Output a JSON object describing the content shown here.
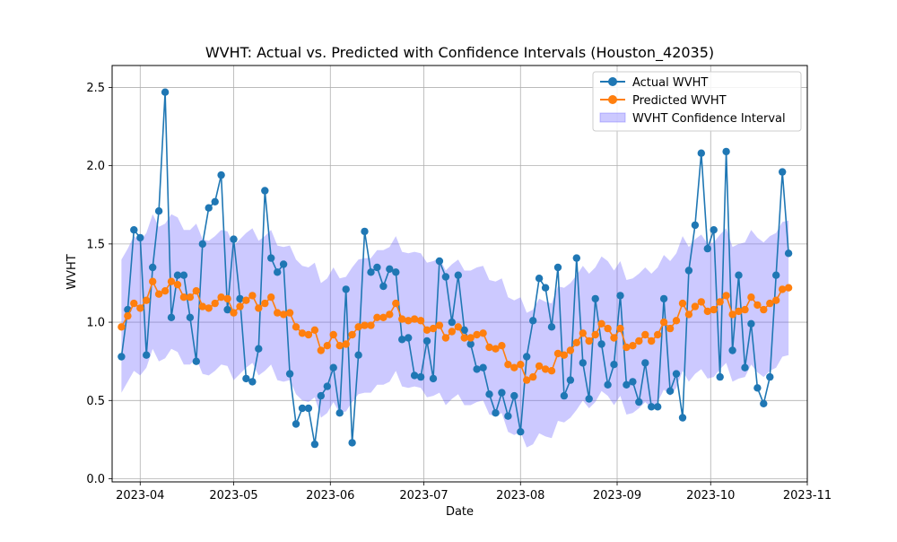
{
  "chart_data": {
    "type": "line",
    "title": "WVHT: Actual vs. Predicted with Confidence Intervals (Houston_42035)",
    "xlabel": "Date",
    "ylabel": "WVHT",
    "xlim": [
      "2023-03-23",
      "2023-11-01"
    ],
    "ylim": [
      -0.02,
      2.64
    ],
    "grid": true,
    "legend_position": "upper right",
    "x_ticks": [
      {
        "date": "2023-04-01",
        "label": "2023-04"
      },
      {
        "date": "2023-05-01",
        "label": "2023-05"
      },
      {
        "date": "2023-06-01",
        "label": "2023-06"
      },
      {
        "date": "2023-07-01",
        "label": "2023-07"
      },
      {
        "date": "2023-08-01",
        "label": "2023-08"
      },
      {
        "date": "2023-09-01",
        "label": "2023-09"
      },
      {
        "date": "2023-10-01",
        "label": "2023-10"
      },
      {
        "date": "2023-11-01",
        "label": "2023-11"
      }
    ],
    "y_ticks": [
      {
        "value": 0.0,
        "label": "0.0"
      },
      {
        "value": 0.5,
        "label": "0.5"
      },
      {
        "value": 1.0,
        "label": "1.0"
      },
      {
        "value": 1.5,
        "label": "1.5"
      },
      {
        "value": 2.0,
        "label": "2.0"
      },
      {
        "value": 2.5,
        "label": "2.5"
      }
    ],
    "colors": {
      "actual": "#1f77b4",
      "predicted": "#ff7f0e",
      "ci_fill": "#6c63ff",
      "ci_fill_opacity": 0.35
    },
    "x": [
      "2023-03-26",
      "2023-03-28",
      "2023-03-30",
      "2023-04-01",
      "2023-04-03",
      "2023-04-05",
      "2023-04-07",
      "2023-04-09",
      "2023-04-11",
      "2023-04-13",
      "2023-04-15",
      "2023-04-17",
      "2023-04-19",
      "2023-04-21",
      "2023-04-23",
      "2023-04-25",
      "2023-04-27",
      "2023-04-29",
      "2023-05-01",
      "2023-05-03",
      "2023-05-05",
      "2023-05-07",
      "2023-05-09",
      "2023-05-11",
      "2023-05-13",
      "2023-05-15",
      "2023-05-17",
      "2023-05-19",
      "2023-05-21",
      "2023-05-23",
      "2023-05-25",
      "2023-05-27",
      "2023-05-29",
      "2023-05-31",
      "2023-06-02",
      "2023-06-04",
      "2023-06-06",
      "2023-06-08",
      "2023-06-10",
      "2023-06-12",
      "2023-06-14",
      "2023-06-16",
      "2023-06-18",
      "2023-06-20",
      "2023-06-22",
      "2023-06-24",
      "2023-06-26",
      "2023-06-28",
      "2023-06-30",
      "2023-07-02",
      "2023-07-04",
      "2023-07-06",
      "2023-07-08",
      "2023-07-10",
      "2023-07-12",
      "2023-07-14",
      "2023-07-16",
      "2023-07-18",
      "2023-07-20",
      "2023-07-22",
      "2023-07-24",
      "2023-07-26",
      "2023-07-28",
      "2023-07-30",
      "2023-08-01",
      "2023-08-03",
      "2023-08-05",
      "2023-08-07",
      "2023-08-09",
      "2023-08-11",
      "2023-08-13",
      "2023-08-15",
      "2023-08-17",
      "2023-08-19",
      "2023-08-21",
      "2023-08-23",
      "2023-08-25",
      "2023-08-27",
      "2023-08-29",
      "2023-08-31",
      "2023-09-02",
      "2023-09-04",
      "2023-09-06",
      "2023-09-08",
      "2023-09-10",
      "2023-09-12",
      "2023-09-14",
      "2023-09-16",
      "2023-09-18",
      "2023-09-20",
      "2023-09-22",
      "2023-09-24",
      "2023-09-26",
      "2023-09-28",
      "2023-09-30",
      "2023-10-02",
      "2023-10-04",
      "2023-10-06",
      "2023-10-08",
      "2023-10-10",
      "2023-10-12",
      "2023-10-14",
      "2023-10-16",
      "2023-10-18",
      "2023-10-20",
      "2023-10-22",
      "2023-10-24",
      "2023-10-26"
    ],
    "series": [
      {
        "name": "Actual WVHT",
        "values": [
          0.78,
          1.08,
          1.59,
          1.54,
          0.79,
          1.35,
          1.71,
          2.47,
          1.03,
          1.3,
          1.3,
          1.03,
          0.75,
          1.5,
          1.73,
          1.77,
          1.94,
          1.08,
          1.53,
          1.15,
          0.64,
          0.62,
          0.83,
          1.84,
          1.41,
          1.32,
          1.37,
          0.67,
          0.35,
          0.45,
          0.45,
          0.22,
          0.53,
          0.59,
          0.71,
          0.42,
          1.21,
          0.23,
          0.79,
          1.58,
          1.32,
          1.35,
          1.23,
          1.34,
          1.32,
          0.89,
          0.9,
          0.66,
          0.65,
          0.88,
          0.64,
          1.39,
          1.29,
          1.0,
          1.3,
          0.95,
          0.86,
          0.7,
          0.71,
          0.54,
          0.42,
          0.55,
          0.4,
          0.53,
          0.3,
          0.78,
          1.01,
          1.28,
          1.22,
          0.97,
          1.35,
          0.53,
          0.63,
          1.41,
          0.74,
          0.51,
          1.15,
          0.86,
          0.6,
          0.73,
          1.17,
          0.6,
          0.62,
          0.49,
          0.74,
          0.46,
          0.46,
          1.15,
          0.56,
          0.67,
          0.39,
          1.33,
          1.62,
          2.08,
          1.47,
          1.59,
          0.65,
          2.09,
          0.82,
          1.3,
          0.71,
          0.99,
          0.58,
          0.48,
          0.65,
          1.3,
          1.96,
          1.44
        ]
      },
      {
        "name": "Predicted WVHT",
        "values": [
          0.97,
          1.04,
          1.12,
          1.09,
          1.14,
          1.26,
          1.18,
          1.2,
          1.26,
          1.24,
          1.16,
          1.16,
          1.2,
          1.1,
          1.09,
          1.12,
          1.16,
          1.15,
          1.06,
          1.1,
          1.14,
          1.17,
          1.09,
          1.12,
          1.16,
          1.06,
          1.05,
          1.06,
          0.97,
          0.93,
          0.92,
          0.95,
          0.82,
          0.85,
          0.92,
          0.85,
          0.86,
          0.92,
          0.97,
          0.98,
          0.98,
          1.03,
          1.03,
          1.05,
          1.12,
          1.02,
          1.01,
          1.02,
          1.01,
          0.95,
          0.96,
          0.98,
          0.9,
          0.94,
          0.97,
          0.9,
          0.9,
          0.92,
          0.93,
          0.84,
          0.83,
          0.85,
          0.73,
          0.71,
          0.73,
          0.63,
          0.65,
          0.72,
          0.7,
          0.69,
          0.8,
          0.79,
          0.82,
          0.87,
          0.93,
          0.88,
          0.92,
          0.99,
          0.96,
          0.9,
          0.96,
          0.84,
          0.85,
          0.88,
          0.92,
          0.88,
          0.92,
          1.0,
          0.96,
          1.01,
          1.12,
          1.05,
          1.1,
          1.13,
          1.07,
          1.08,
          1.13,
          1.17,
          1.05,
          1.07,
          1.08,
          1.16,
          1.11,
          1.08,
          1.12,
          1.14,
          1.21,
          1.22
        ]
      },
      {
        "name": "WVHT Confidence Interval",
        "lower": [
          0.55,
          0.62,
          0.69,
          0.66,
          0.71,
          0.83,
          0.75,
          0.77,
          0.83,
          0.81,
          0.73,
          0.73,
          0.77,
          0.67,
          0.66,
          0.69,
          0.73,
          0.72,
          0.63,
          0.67,
          0.71,
          0.74,
          0.66,
          0.69,
          0.73,
          0.63,
          0.62,
          0.63,
          0.54,
          0.5,
          0.49,
          0.52,
          0.39,
          0.42,
          0.49,
          0.42,
          0.43,
          0.49,
          0.54,
          0.55,
          0.55,
          0.6,
          0.6,
          0.62,
          0.69,
          0.59,
          0.58,
          0.59,
          0.58,
          0.52,
          0.53,
          0.55,
          0.47,
          0.51,
          0.54,
          0.47,
          0.47,
          0.49,
          0.5,
          0.41,
          0.4,
          0.42,
          0.3,
          0.28,
          0.3,
          0.2,
          0.22,
          0.29,
          0.27,
          0.26,
          0.37,
          0.36,
          0.39,
          0.44,
          0.5,
          0.45,
          0.49,
          0.56,
          0.53,
          0.47,
          0.53,
          0.41,
          0.42,
          0.45,
          0.49,
          0.45,
          0.49,
          0.57,
          0.53,
          0.58,
          0.69,
          0.62,
          0.67,
          0.7,
          0.64,
          0.65,
          0.7,
          0.74,
          0.62,
          0.64,
          0.65,
          0.73,
          0.68,
          0.65,
          0.69,
          0.71,
          0.78,
          0.79
        ],
        "upper": [
          1.4,
          1.47,
          1.55,
          1.52,
          1.57,
          1.69,
          1.61,
          1.63,
          1.69,
          1.67,
          1.59,
          1.59,
          1.63,
          1.53,
          1.52,
          1.55,
          1.59,
          1.58,
          1.49,
          1.53,
          1.57,
          1.6,
          1.52,
          1.55,
          1.59,
          1.49,
          1.48,
          1.49,
          1.4,
          1.36,
          1.35,
          1.38,
          1.25,
          1.28,
          1.35,
          1.28,
          1.29,
          1.35,
          1.4,
          1.41,
          1.41,
          1.46,
          1.46,
          1.48,
          1.55,
          1.45,
          1.44,
          1.45,
          1.44,
          1.38,
          1.39,
          1.41,
          1.33,
          1.37,
          1.4,
          1.33,
          1.33,
          1.35,
          1.36,
          1.27,
          1.26,
          1.28,
          1.16,
          1.14,
          1.16,
          1.06,
          1.08,
          1.15,
          1.13,
          1.12,
          1.23,
          1.22,
          1.25,
          1.3,
          1.36,
          1.31,
          1.35,
          1.42,
          1.39,
          1.33,
          1.39,
          1.27,
          1.28,
          1.31,
          1.35,
          1.31,
          1.35,
          1.43,
          1.39,
          1.44,
          1.55,
          1.48,
          1.53,
          1.56,
          1.5,
          1.51,
          1.56,
          1.6,
          1.48,
          1.5,
          1.51,
          1.59,
          1.54,
          1.51,
          1.55,
          1.57,
          1.64,
          1.65
        ]
      }
    ]
  }
}
